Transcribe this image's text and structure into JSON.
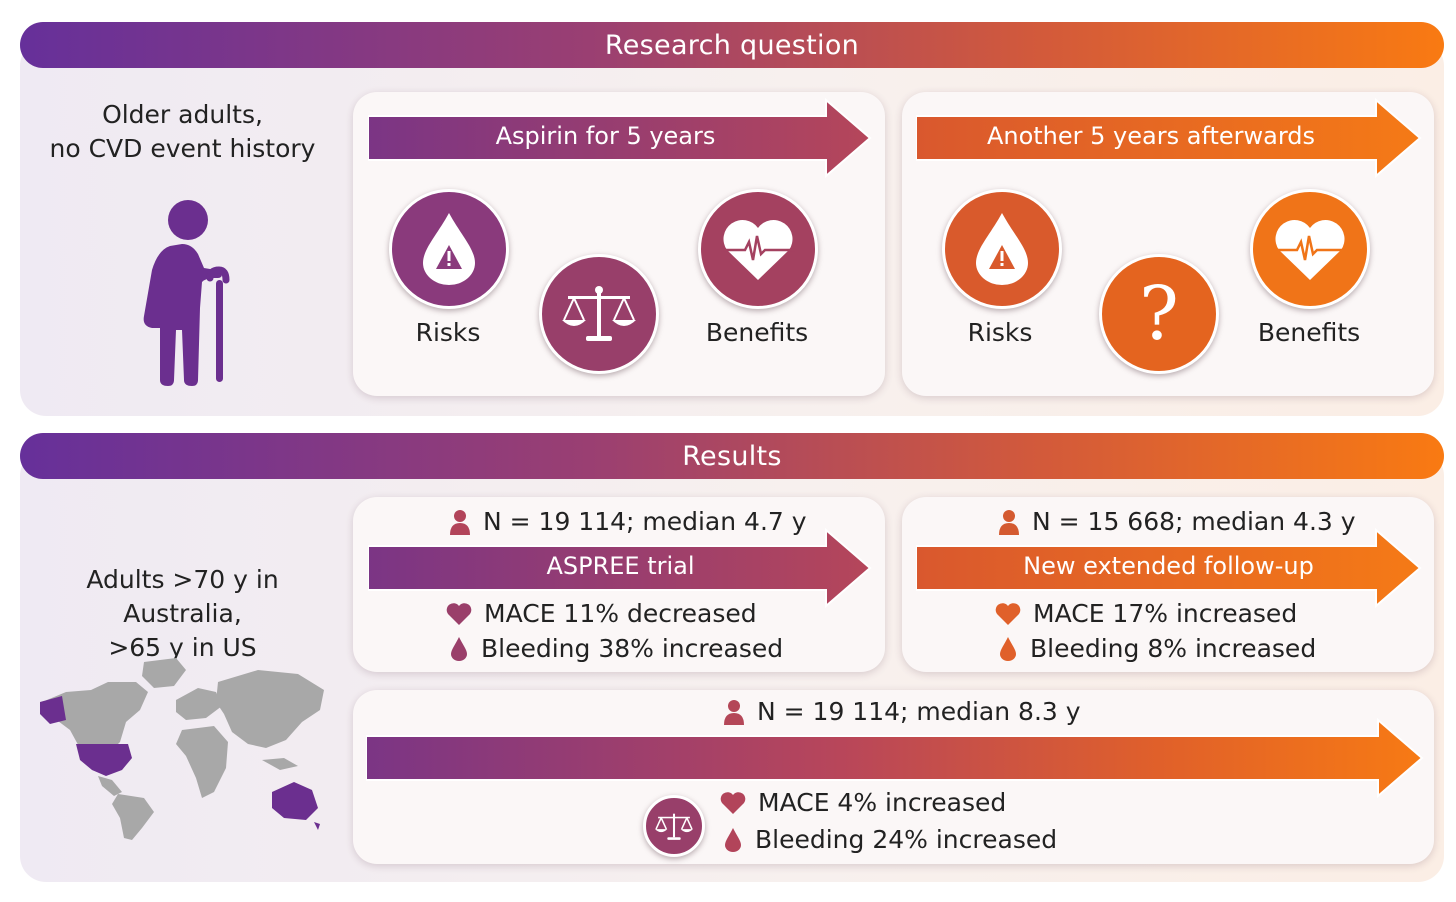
{
  "colors": {
    "purple": "#6b2f8f",
    "plum": "#983f6a",
    "orange": "#e8661e",
    "gray": "#a8a8a8"
  },
  "research": {
    "banner": "Research question",
    "population": "Older adults,\nno CVD event history",
    "phase1": {
      "arrow_label": "Aspirin for 5 years",
      "risks_label": "Risks",
      "benefits_label": "Benefits"
    },
    "phase2": {
      "arrow_label": "Another 5 years afterwards",
      "risks_label": "Risks",
      "benefits_label": "Benefits",
      "unknown_symbol": "?"
    }
  },
  "results": {
    "banner": "Results",
    "population": "Adults >70 y in Australia,\n>65 y in US",
    "trial": {
      "n": "N = 19 114; median 4.7 y",
      "arrow_label": "ASPREE trial",
      "mace": "MACE 11% decreased",
      "bleeding": "Bleeding 38% increased"
    },
    "extended": {
      "n": "N = 15 668; median 4.3 y",
      "arrow_label": "New extended follow-up",
      "mace": "MACE 17% increased",
      "bleeding": "Bleeding 8% increased"
    },
    "overall": {
      "n": "N = 19 114; median 8.3 y",
      "mace": "MACE 4% increased",
      "bleeding": "Bleeding 24% increased"
    }
  }
}
